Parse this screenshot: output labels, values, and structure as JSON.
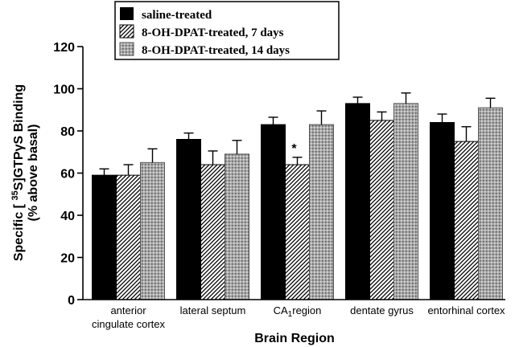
{
  "chart_data": {
    "type": "bar",
    "categories": [
      [
        "anterior",
        "cingulate cortex"
      ],
      [
        "lateral septum"
      ],
      [
        "CA1region"
      ],
      [
        "dentate gyrus"
      ],
      [
        "entorhinal cortex"
      ]
    ],
    "series": [
      {
        "name": "saline-treated",
        "values": [
          59,
          76,
          83,
          93,
          84
        ],
        "errors": [
          3,
          3,
          3.5,
          3,
          4
        ],
        "color": "#000000",
        "pattern": "solid"
      },
      {
        "name": "8-OH-DPAT-treated, 7 days",
        "values": [
          59,
          64,
          64,
          85,
          75
        ],
        "errors": [
          5,
          6.5,
          3.5,
          4,
          7
        ],
        "color": "#000000",
        "pattern": "hatch"
      },
      {
        "name": "8-OH-DPAT-treated, 14 days",
        "values": [
          65,
          69,
          83,
          93,
          91
        ],
        "errors": [
          6.5,
          6.5,
          6.5,
          5,
          4.5
        ],
        "color": "#9a9a9a",
        "pattern": "stipple"
      }
    ],
    "ylim": [
      0,
      120
    ],
    "yticks": [
      0,
      20,
      40,
      60,
      80,
      100,
      120
    ],
    "xlabel": "Brain Region",
    "ylabel_line1": "Specific [35S]GTPγS Binding",
    "ylabel_line2": "(% above basal)",
    "annotations": [
      {
        "category_index": 2,
        "series_index": 1,
        "text": "*"
      }
    ],
    "legend_position": "top"
  }
}
